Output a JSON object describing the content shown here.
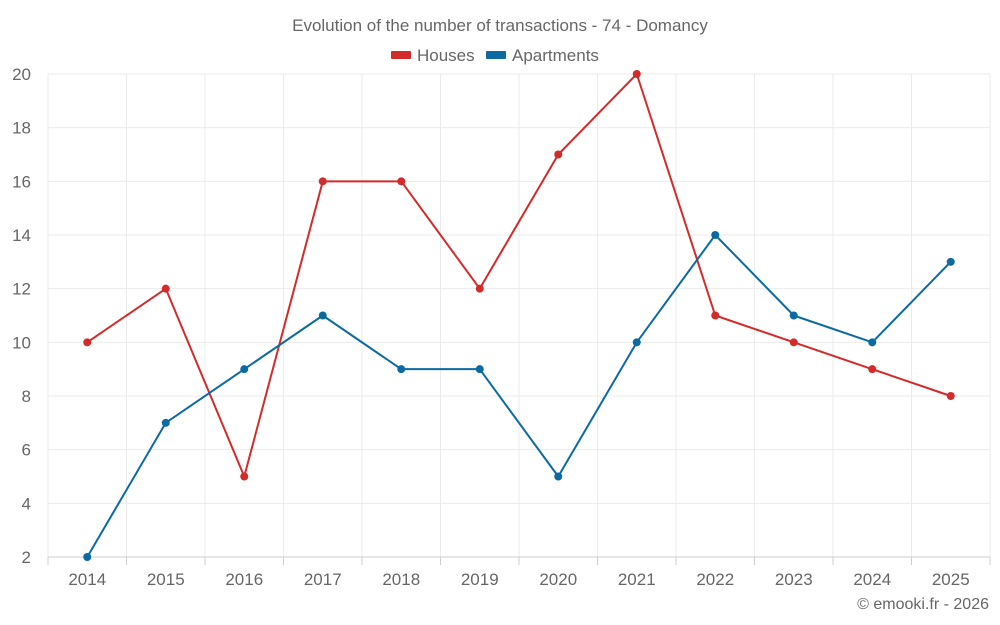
{
  "chart_data": {
    "type": "line",
    "title": "Evolution of the number of transactions - 74 - Domancy",
    "categories": [
      "2014",
      "2015",
      "2016",
      "2017",
      "2018",
      "2019",
      "2020",
      "2021",
      "2022",
      "2023",
      "2024",
      "2025"
    ],
    "series": [
      {
        "name": "Houses",
        "color": "#d32a2a",
        "values": [
          10,
          12,
          5,
          16,
          16,
          12,
          17,
          20,
          11,
          10,
          9,
          8
        ]
      },
      {
        "name": "Apartments",
        "color": "#0b6aa2",
        "values": [
          2,
          7,
          9,
          11,
          9,
          9,
          5,
          10,
          14,
          11,
          10,
          13
        ]
      }
    ],
    "ylim": [
      2,
      20
    ],
    "yticks": [
      "2",
      "4",
      "6",
      "8",
      "10",
      "12",
      "14",
      "16",
      "18",
      "20"
    ],
    "grid": true,
    "legend": "top-center",
    "xlabel": "",
    "ylabel": ""
  },
  "credit": "© emooki.fr - 2026"
}
